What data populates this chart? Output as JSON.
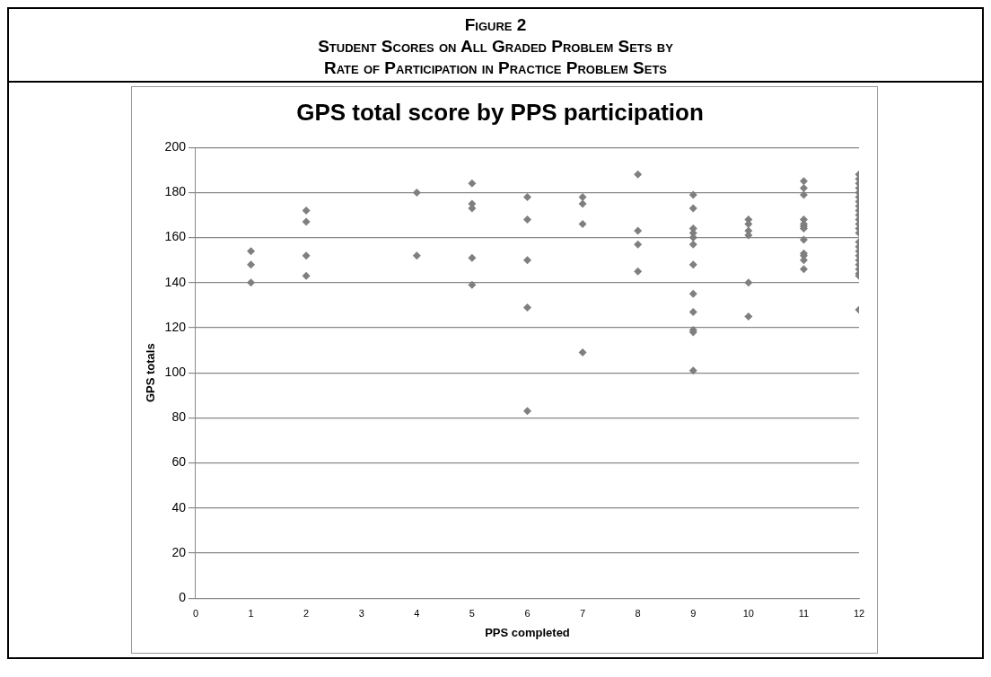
{
  "chart_data": {
    "type": "scatter",
    "title": "GPS total score by PPS participation",
    "xlabel": "PPS completed",
    "ylabel": "GPS totals",
    "annotations": [
      "Figure 2",
      "Student Scores on All Graded Problem Sets by",
      "Rate of Participation in Practice Problem Sets"
    ],
    "x": [
      1,
      1,
      1,
      2,
      2,
      2,
      2,
      4,
      4,
      5,
      5,
      5,
      5,
      5,
      6,
      6,
      6,
      6,
      6,
      7,
      7,
      7,
      7,
      8,
      8,
      8,
      8,
      9,
      9,
      9,
      9,
      9,
      9,
      9,
      9,
      9,
      9,
      9,
      9,
      10,
      10,
      10,
      10,
      10,
      10,
      11,
      11,
      11,
      11,
      11,
      11,
      11,
      11,
      11,
      11,
      11,
      11,
      12,
      12,
      12,
      12,
      12,
      12,
      12,
      12,
      12,
      12,
      12,
      12,
      12,
      12,
      12,
      12,
      12,
      12,
      12,
      12,
      12,
      12,
      12,
      12
    ],
    "series": [
      {
        "color": "#7f7f7f",
        "values": [
          154,
          148,
          140,
          172,
          167,
          152,
          143,
          180,
          152,
          184,
          175,
          173,
          151,
          139,
          178,
          168,
          150,
          129,
          83,
          178,
          175,
          166,
          109,
          188,
          163,
          157,
          145,
          179,
          173,
          164,
          162,
          160,
          157,
          148,
          135,
          127,
          119,
          118,
          101,
          168,
          166,
          163,
          161,
          140,
          125,
          185,
          182,
          179,
          168,
          166,
          165,
          164,
          159,
          153,
          152,
          150,
          146,
          188,
          186,
          184,
          182,
          180,
          178,
          176,
          174,
          172,
          170,
          168,
          166,
          164,
          162,
          158,
          156,
          154,
          152,
          150,
          148,
          146,
          144,
          143,
          128
        ]
      }
    ],
    "xlim": [
      0,
      12
    ],
    "xticks": [
      0,
      1,
      2,
      3,
      4,
      5,
      6,
      7,
      8,
      9,
      10,
      11,
      12
    ],
    "ylim": [
      0,
      200
    ],
    "yticks": [
      0,
      20,
      40,
      60,
      80,
      100,
      120,
      140,
      160,
      180,
      200
    ],
    "grid": "y",
    "legend": false,
    "marker": "diamond"
  }
}
